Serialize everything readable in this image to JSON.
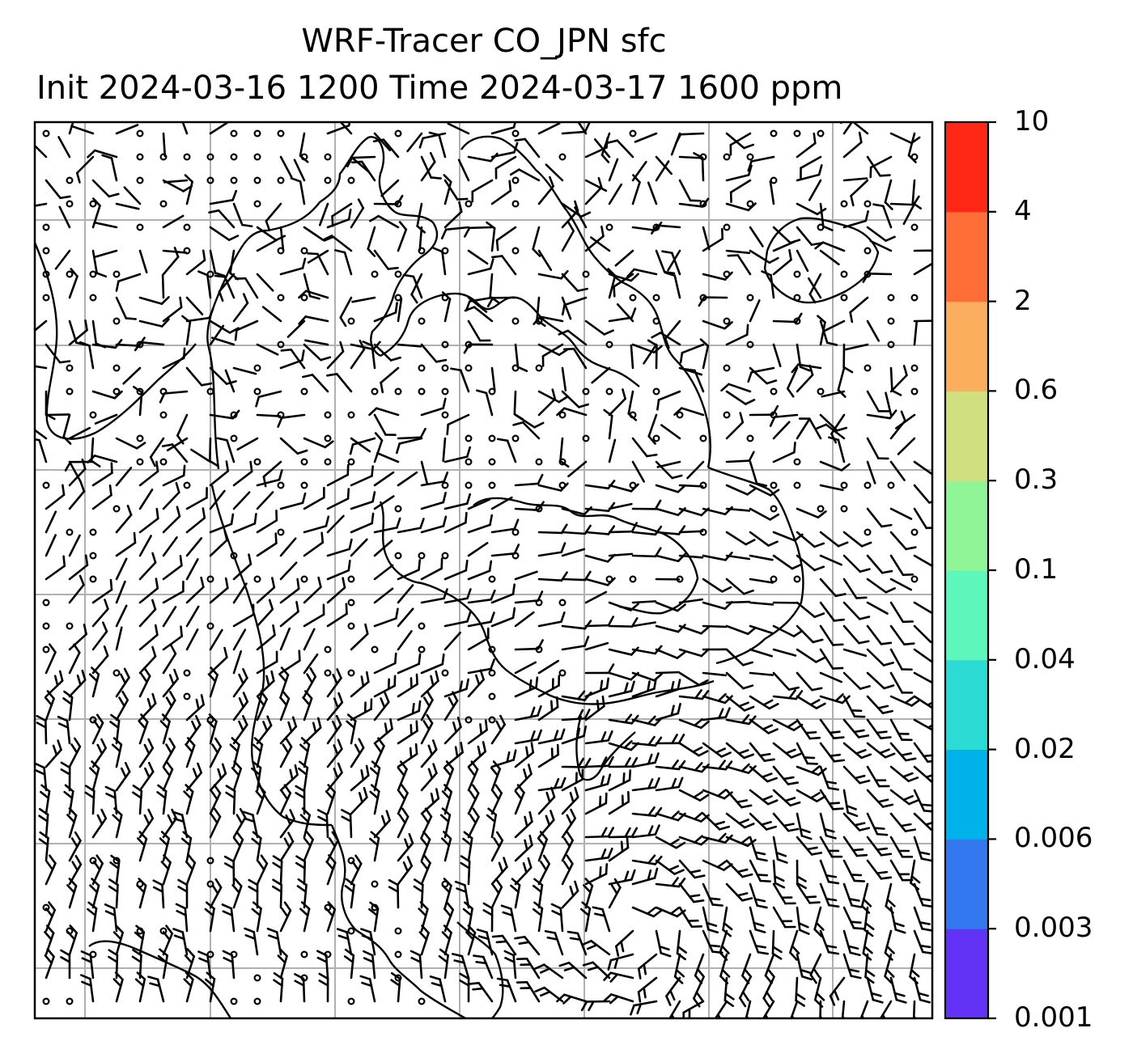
{
  "title": {
    "line1": "WRF-Tracer CO_JPN sfc",
    "line2": "Init 2024-03-16 1200 Time 2024-03-17 1600 ppm"
  },
  "colorbar": {
    "levels": [
      "0.001",
      "0.003",
      "0.006",
      "0.02",
      "0.04",
      "0.1",
      "0.3",
      "0.6",
      "2",
      "4",
      "10"
    ],
    "colors": [
      "#6233f7",
      "#3478f0",
      "#00b2ea",
      "#2cdbd3",
      "#5ef7bb",
      "#8ff596",
      "#d1e07f",
      "#fbaf5e",
      "#ff6e36",
      "#ff2816"
    ]
  },
  "map": {
    "field": "surface wind barbs",
    "gridline_color": "#b0b0b0",
    "coastline_color": "#000000"
  }
}
